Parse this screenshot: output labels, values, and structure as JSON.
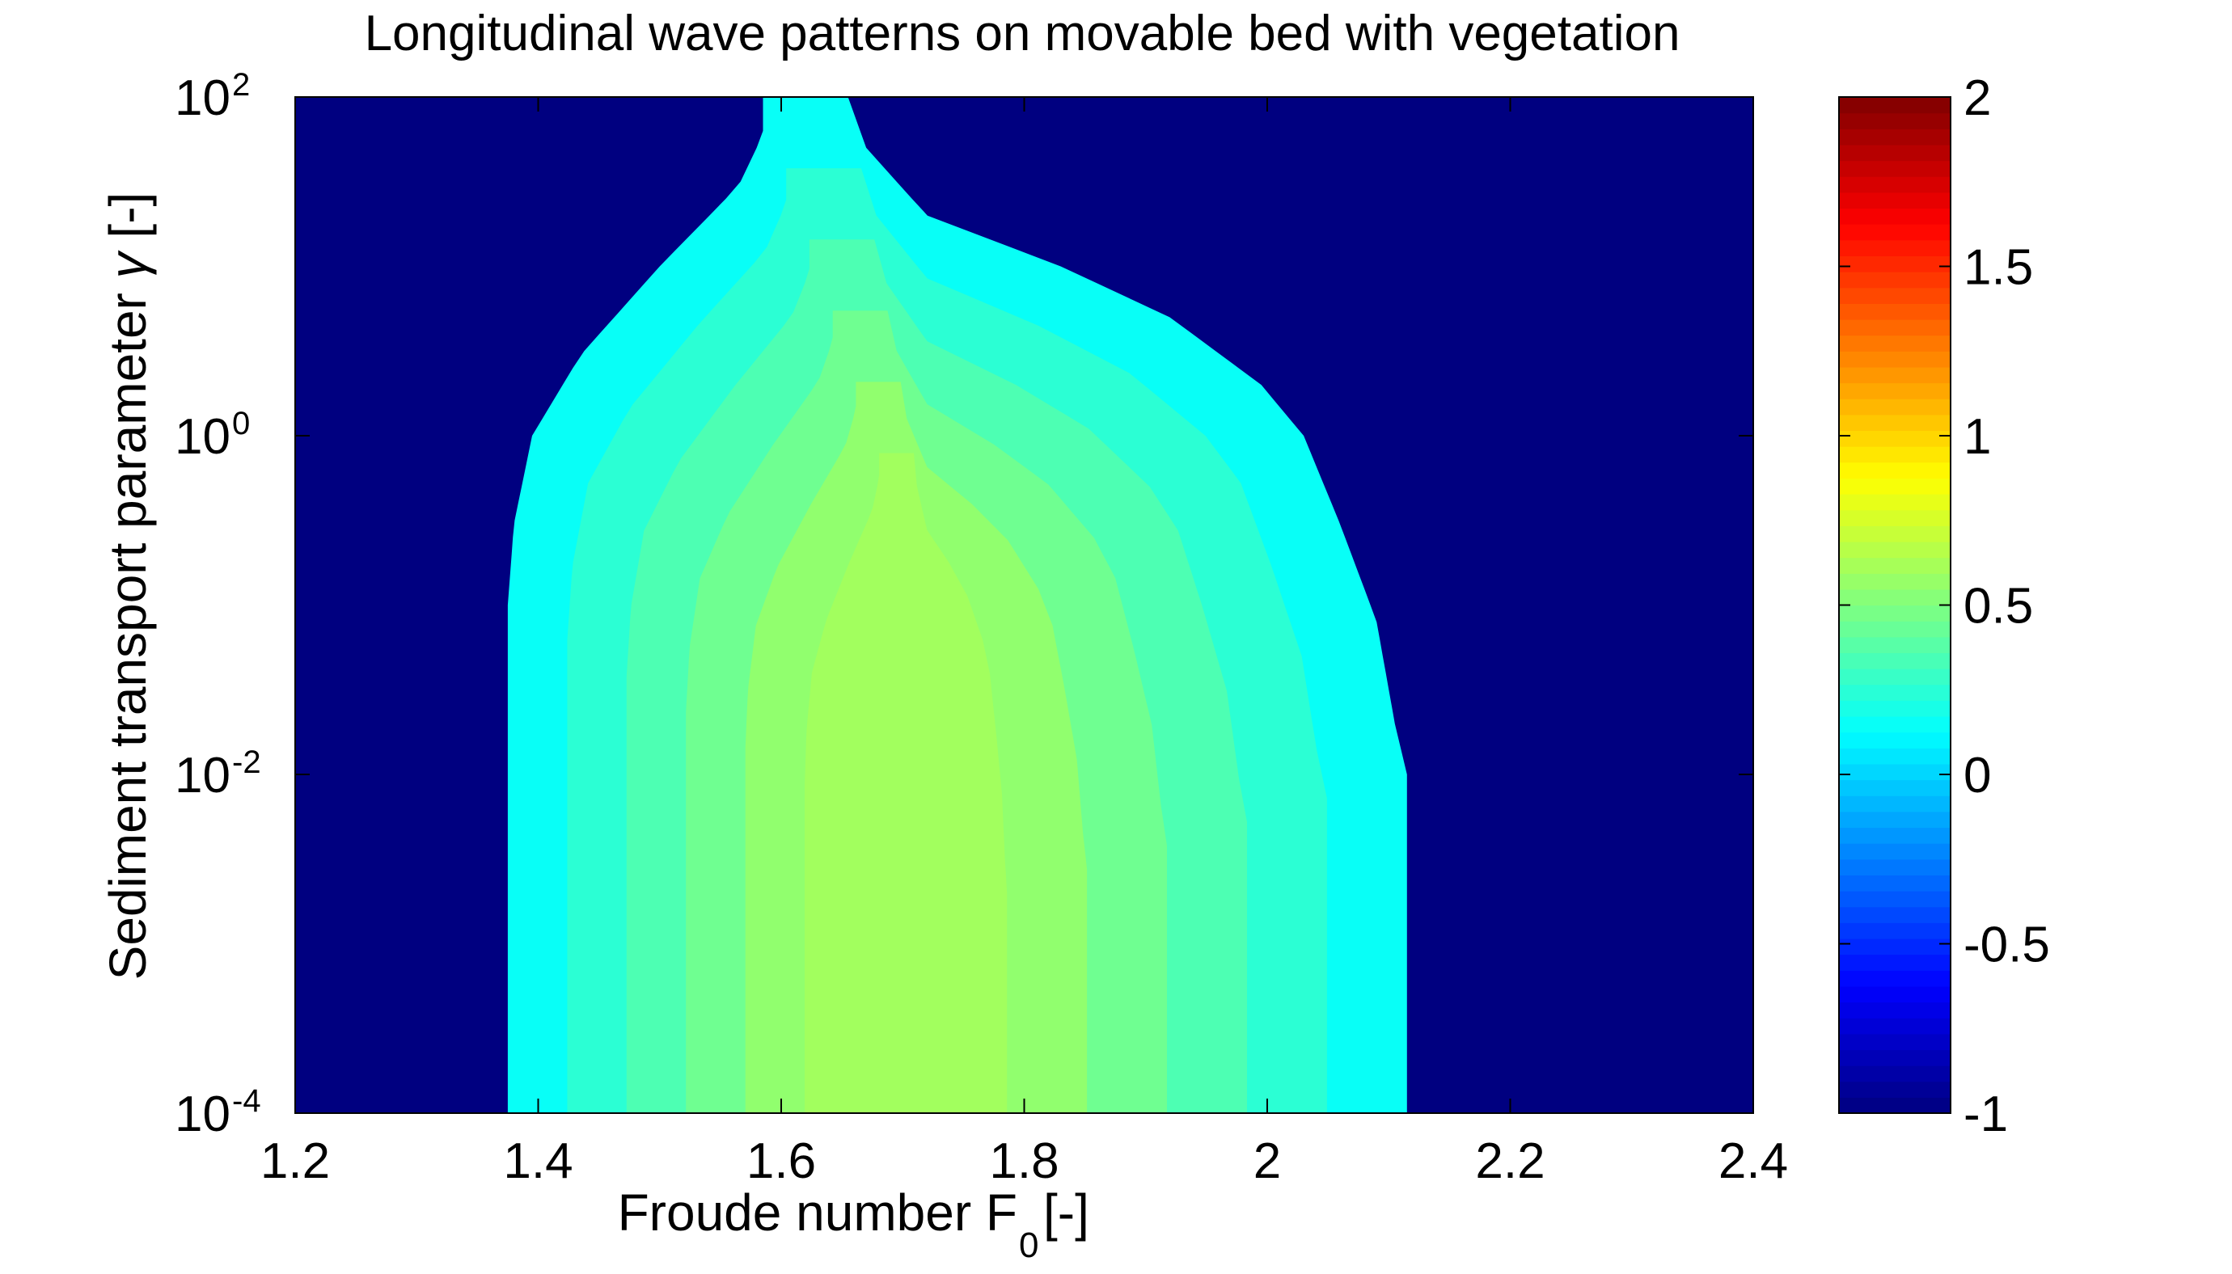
{
  "chart_data": {
    "type": "heatmap",
    "title": "Longitudinal wave patterns on movable bed with vegetation",
    "xlabel": {
      "text": "Froude number  F",
      "subscript": "0",
      "suffix": " [-]"
    },
    "ylabel": {
      "text": "Sediment transport parameter  ",
      "symbol": "γ",
      "suffix": " [-]"
    },
    "x_ticks": [
      "1.2",
      "1.4",
      "1.6",
      "1.8",
      "2",
      "2.2",
      "2.4"
    ],
    "x_tick_values": [
      1.2,
      1.4,
      1.6,
      1.8,
      2.0,
      2.2,
      2.4
    ],
    "xlim": [
      1.2,
      2.4
    ],
    "y_scale": "log",
    "ylim": [
      0.0001,
      100
    ],
    "y_ticks": [
      {
        "base": "10",
        "exp": "-4",
        "value": 0.0001
      },
      {
        "base": "10",
        "exp": "-2",
        "value": 0.01
      },
      {
        "base": "10",
        "exp": "0",
        "value": 1
      },
      {
        "base": "10",
        "exp": "2",
        "value": 100
      }
    ],
    "colorbar": {
      "ticks": [
        "-1",
        "-0.5",
        "0",
        "0.5",
        "1",
        "1.5",
        "2"
      ],
      "tick_values": [
        -1,
        -0.5,
        0,
        0.5,
        1,
        1.5,
        2
      ],
      "range": [
        -1,
        2
      ],
      "colormap": "jet"
    },
    "background_value": -1,
    "region": {
      "description_value_levels": [
        0.15,
        0.25,
        0.35,
        0.45,
        0.55,
        0.6
      ],
      "right_boundary": [
        {
          "y": 0.0001,
          "x": 2.115
        },
        {
          "y": 0.01,
          "x": 2.115
        },
        {
          "y": 0.02,
          "x": 2.105
        },
        {
          "y": 0.08,
          "x": 2.09
        },
        {
          "y": 0.3,
          "x": 2.06
        },
        {
          "y": 1,
          "x": 2.03
        },
        {
          "y": 2,
          "x": 1.995
        },
        {
          "y": 5,
          "x": 1.92
        },
        {
          "y": 10,
          "x": 1.83
        },
        {
          "y": 20,
          "x": 1.72
        },
        {
          "y": 50,
          "x": 1.67
        },
        {
          "y": 100,
          "x": 1.655
        }
      ],
      "left_boundary": [
        {
          "y": 0.0001,
          "x": 1.375
        },
        {
          "y": 0.1,
          "x": 1.375
        },
        {
          "y": 0.3,
          "x": 1.38
        },
        {
          "y": 1,
          "x": 1.395
        },
        {
          "y": 3,
          "x": 1.435
        },
        {
          "y": 10,
          "x": 1.5
        },
        {
          "y": 30,
          "x": 1.565
        },
        {
          "y": 60,
          "x": 1.585
        },
        {
          "y": 100,
          "x": 1.585
        }
      ]
    },
    "grid": false
  }
}
